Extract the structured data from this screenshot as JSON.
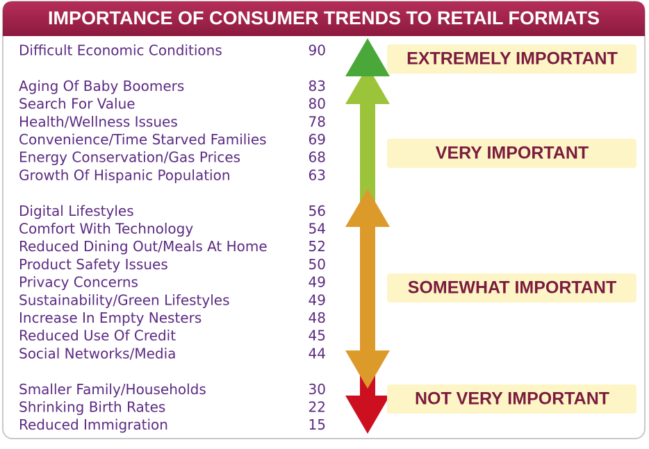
{
  "header": {
    "title": "IMPORTANCE OF CONSUMER TRENDS TO RETAIL FORMATS"
  },
  "groups": [
    {
      "label": "EXTREMELY IMPORTANT",
      "items": [
        {
          "trend": "Difficult Economic Conditions",
          "score": 90
        }
      ]
    },
    {
      "label": "VERY IMPORTANT",
      "items": [
        {
          "trend": "Aging Of Baby Boomers",
          "score": 83
        },
        {
          "trend": "Search For Value",
          "score": 80
        },
        {
          "trend": "Health/Wellness Issues",
          "score": 78
        },
        {
          "trend": "Convenience/Time Starved Families",
          "score": 69
        },
        {
          "trend": "Energy Conservation/Gas Prices",
          "score": 68
        },
        {
          "trend": "Growth Of Hispanic Population",
          "score": 63
        }
      ]
    },
    {
      "label": "SOMEWHAT IMPORTANT",
      "items": [
        {
          "trend": "Digital Lifestyles",
          "score": 56
        },
        {
          "trend": "Comfort With Technology",
          "score": 54
        },
        {
          "trend": "Reduced Dining Out/Meals At Home",
          "score": 52
        },
        {
          "trend": "Product Safety Issues",
          "score": 50
        },
        {
          "trend": "Privacy Concerns",
          "score": 49
        },
        {
          "trend": "Sustainability/Green Lifestyles",
          "score": 49
        },
        {
          "trend": "Increase In Empty Nesters",
          "score": 48
        },
        {
          "trend": "Reduced Use Of Credit",
          "score": 45
        },
        {
          "trend": "Social Networks/Media",
          "score": 44
        }
      ]
    },
    {
      "label": "NOT VERY IMPORTANT",
      "items": [
        {
          "trend": "Smaller Family/Households",
          "score": 30
        },
        {
          "trend": "Shrinking Birth Rates",
          "score": 22
        },
        {
          "trend": "Reduced Immigration",
          "score": 15
        }
      ]
    }
  ]
}
